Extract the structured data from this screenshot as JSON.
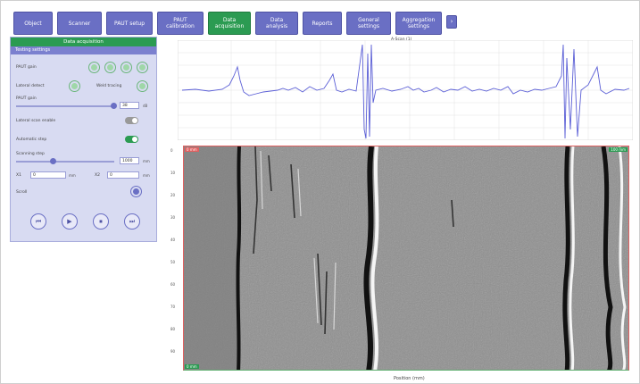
{
  "nav": {
    "items": [
      "Object",
      "Scanner",
      "PAUT setup",
      "PAUT calibration",
      "Data acquisition",
      "Data analysis",
      "Reports",
      "General settings",
      "Aggregation settings"
    ],
    "active": "Data acquisition",
    "more": "›"
  },
  "panel": {
    "title": "Data acquisition",
    "subtitle": "Testing settings",
    "paut_gain_label": "PAUT gain",
    "lateral_label": "Lateral detect",
    "weld_label": "Weld tracing",
    "paut_gain2_label": "PAUT gain",
    "paut_gain_value": "38",
    "unit_db": "dB",
    "lateral_enable_label": "Lateral scan enable",
    "automatic_label": "Automatic step",
    "scanning_label": "Scanning step",
    "scanning_value": "1000",
    "unit_mm": "mm",
    "from_label": "X1",
    "from_value": "0",
    "to_label": "X2",
    "to_value": "0",
    "scroll_label": "Scroll",
    "controls": [
      "⏮",
      "▶",
      "⏹",
      "⏭"
    ]
  },
  "signal": {
    "title": "A-Scan (1)",
    "line_color": "#5b5fd6"
  },
  "scan": {
    "xlabel": "Position (mm)",
    "tag_tl": "0 mm",
    "tag_tr": "100 mm",
    "tag_bl": "0 mm",
    "y_ticks": [
      "0",
      "10",
      "20",
      "30",
      "40",
      "50",
      "60",
      "70",
      "80",
      "90"
    ]
  }
}
